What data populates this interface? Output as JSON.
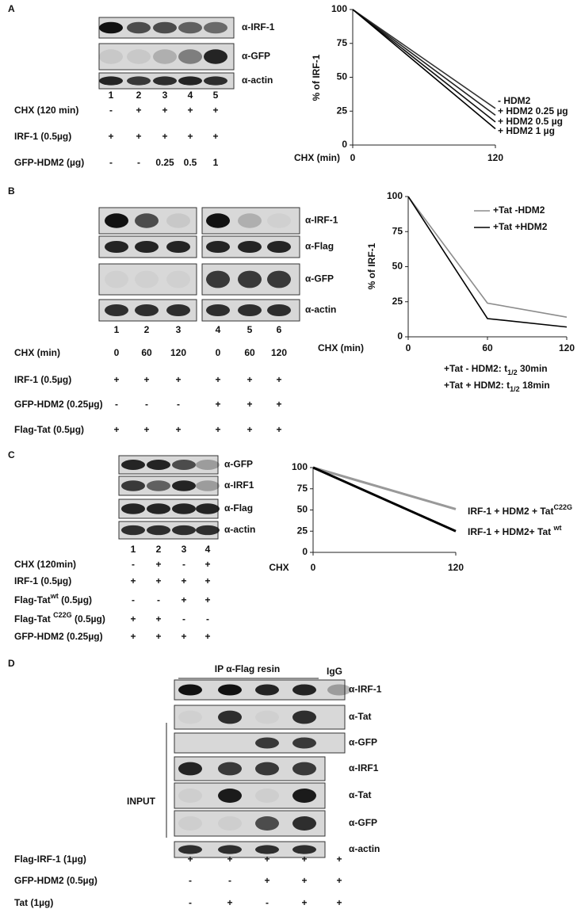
{
  "panels": [
    {
      "label": "A",
      "antibodies": [
        "α-IRF-1",
        "α-GFP",
        "α-actin"
      ],
      "lanes": [
        "1",
        "2",
        "3",
        "4",
        "5"
      ],
      "conditions": [
        {
          "label": "CHX (120 min)",
          "values": [
            "-",
            "+",
            "+",
            "+",
            "+"
          ]
        },
        {
          "label": "IRF-1 (0.5µg)",
          "values": [
            "+",
            "+",
            "+",
            "+",
            "+"
          ]
        },
        {
          "label": "GFP-HDM2 (µg)",
          "values": [
            "-",
            "-",
            "0.25",
            "0.5",
            "1"
          ]
        }
      ]
    },
    {
      "label": "B",
      "antibodies": [
        "α-IRF-1",
        "α-Flag",
        "α-GFP",
        "α-actin"
      ],
      "lanes": [
        "1",
        "2",
        "3",
        "4",
        "5",
        "6"
      ],
      "conditions": [
        {
          "label": "CHX (min)",
          "values": [
            "0",
            "60",
            "120",
            "0",
            "60",
            "120"
          ]
        },
        {
          "label": "IRF-1 (0.5µg)",
          "values": [
            "+",
            "+",
            "+",
            "+",
            "+",
            "+"
          ]
        },
        {
          "label": "GFP-HDM2 (0.25µg)",
          "values": [
            "-",
            "-",
            "-",
            "+",
            "+",
            "+"
          ]
        },
        {
          "label": "Flag-Tat (0.5µg)",
          "values": [
            "+",
            "+",
            "+",
            "+",
            "+",
            "+"
          ]
        }
      ]
    },
    {
      "label": "C",
      "antibodies": [
        "α-GFP",
        "α-IRF1",
        "α-Flag",
        "α-actin"
      ],
      "lanes": [
        "1",
        "2",
        "3",
        "4"
      ],
      "conditions": [
        {
          "label": "CHX (120min)",
          "values": [
            "-",
            "+",
            "-",
            "+"
          ]
        },
        {
          "label": "IRF-1 (0.5µg)",
          "values": [
            "+",
            "+",
            "+",
            "+"
          ]
        },
        {
          "label": "Flag-Tat",
          "label_sup": "wt",
          "label_end": " (0.5µg)",
          "values": [
            "-",
            "-",
            "+",
            "+"
          ]
        },
        {
          "label": "Flag-Tat ",
          "label_sup": "C22G",
          "label_end": " (0.5µg)",
          "values": [
            "+",
            "+",
            "-",
            "-"
          ]
        },
        {
          "label": "GFP-HDM2 (0.25µg)",
          "values": [
            "+",
            "+",
            "+",
            "+"
          ]
        }
      ]
    },
    {
      "label": "D",
      "header": "IP α-Flag resin",
      "control": "IgG",
      "input": "INPUT",
      "antibodies": [
        "α-IRF-1",
        "α-Tat",
        "α-GFP",
        "α-IRF1",
        "α-Tat",
        "α-GFP",
        "α-actin"
      ],
      "conditions": [
        {
          "label": "Flag-IRF-1 (1µg)",
          "values": [
            "+",
            "+",
            "+",
            "+",
            "+"
          ]
        },
        {
          "label": "GFP-HDM2 (0.5µg)",
          "values": [
            "-",
            "-",
            "+",
            "+",
            "+"
          ]
        },
        {
          "label": "Tat (1µg)",
          "values": [
            "-",
            "+",
            "-",
            "+",
            "+"
          ]
        }
      ]
    }
  ],
  "chart_data": [
    {
      "type": "line",
      "ylabel": "% of IRF-1",
      "xlabel": "CHX (min)",
      "x": [
        0,
        120
      ],
      "xlim": [
        0,
        120
      ],
      "xticks": [
        0,
        120
      ],
      "ylim": [
        0,
        100
      ],
      "yticks": [
        0,
        25,
        50,
        75,
        100
      ],
      "series": [
        {
          "name": "- HDM2",
          "color": "#333333",
          "values": [
            100,
            27
          ]
        },
        {
          "name": "+ HDM2  0.25 µg",
          "color": "#222222",
          "values": [
            100,
            22
          ]
        },
        {
          "name": "+ HDM2  0.5 µg",
          "color": "#111111",
          "values": [
            100,
            17
          ]
        },
        {
          "name": "+ HDM2  1 µg",
          "color": "#000000",
          "values": [
            100,
            12
          ]
        }
      ]
    },
    {
      "type": "line",
      "ylabel": "% of IRF-1",
      "xlabel": "CHX (min)",
      "x": [
        0,
        60,
        120
      ],
      "xlim": [
        0,
        120
      ],
      "xticks": [
        0,
        60,
        120
      ],
      "ylim": [
        0,
        100
      ],
      "yticks": [
        0,
        25,
        50,
        75,
        100
      ],
      "series": [
        {
          "name": "+Tat -HDM2",
          "color": "#8c8c8c",
          "values": [
            100,
            24,
            14
          ]
        },
        {
          "name": "+Tat +HDM2",
          "color": "#000000",
          "values": [
            100,
            13,
            7
          ]
        }
      ],
      "annotations": [
        {
          "text": "+Tat - HDM2: t",
          "sub": "1/2",
          "end": " 30min"
        },
        {
          "text": "+Tat + HDM2: t",
          "sub": "1/2",
          "end": " 18min"
        }
      ]
    },
    {
      "type": "line",
      "xlabel": "CHX",
      "x": [
        0,
        120
      ],
      "xlim": [
        0,
        120
      ],
      "xticks": [
        0,
        120
      ],
      "ylim": [
        0,
        100
      ],
      "yticks": [
        0,
        25,
        50,
        75,
        100
      ],
      "series": [
        {
          "name": "IRF-1 + HDM2 + Tat",
          "name_sup": "C22G",
          "color": "#999999",
          "values": [
            100,
            51
          ]
        },
        {
          "name": "IRF-1 + HDM2+ Tat ",
          "name_sup": "wt",
          "color": "#000000",
          "values": [
            100,
            25
          ]
        }
      ]
    }
  ]
}
